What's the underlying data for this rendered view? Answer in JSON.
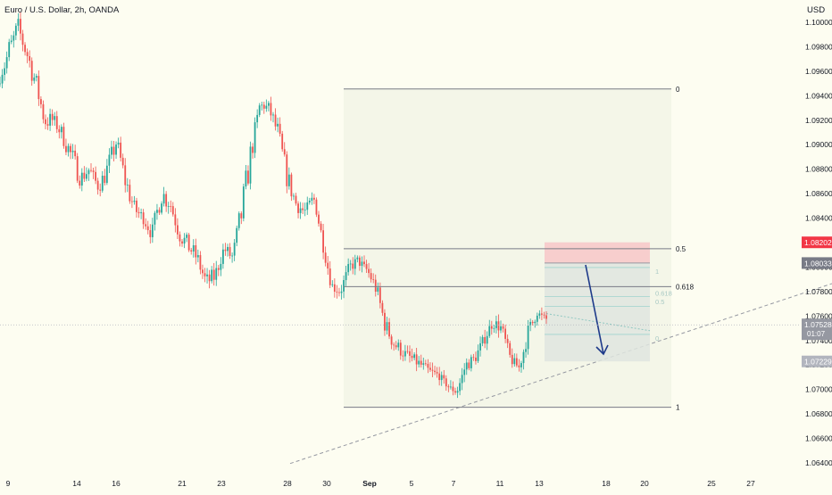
{
  "header": {
    "title": "Euro / U.S. Dollar, 2h, OANDA",
    "currency": "USD"
  },
  "colors": {
    "background": "#fdfdf1",
    "up_candle": "#26a69a",
    "down_candle": "#ef5350",
    "axis_text": "#131722",
    "fib_line": "#787b86",
    "stop_zone": "#f7caca",
    "target_zone": "#dfe5df",
    "arrow": "#1e3a8a",
    "stop_tag": "#f23645",
    "current_tag": "#9598a1",
    "entry_tag": "#787b86",
    "target_tag": "#b2b5be"
  },
  "chart_data": {
    "type": "candlestick",
    "symbol": "EURUSD",
    "timeframe": "2h",
    "ylim": [
      1.063,
      1.1015
    ],
    "xlim": [
      0,
      932
    ],
    "y_ticks": [
      "1.10000",
      "1.09800",
      "1.09600",
      "1.09400",
      "1.09200",
      "1.09000",
      "1.08800",
      "1.08600",
      "1.08400",
      "1.08200",
      "1.08000",
      "1.07800",
      "1.07600",
      "1.07400",
      "1.07200",
      "1.07000",
      "1.06800",
      "1.06600",
      "1.06400"
    ],
    "x_ticks": [
      {
        "label": "9",
        "bold": false
      },
      {
        "label": "14",
        "bold": false
      },
      {
        "label": "16",
        "bold": false
      },
      {
        "label": "21",
        "bold": false
      },
      {
        "label": "23",
        "bold": false
      },
      {
        "label": "28",
        "bold": false
      },
      {
        "label": "30",
        "bold": false
      },
      {
        "label": "Sep",
        "bold": true
      },
      {
        "label": "5",
        "bold": false
      },
      {
        "label": "7",
        "bold": false
      },
      {
        "label": "11",
        "bold": false
      },
      {
        "label": "13",
        "bold": false
      },
      {
        "label": "18",
        "bold": false
      },
      {
        "label": "20",
        "bold": false
      },
      {
        "label": "25",
        "bold": false
      },
      {
        "label": "27",
        "bold": false
      }
    ],
    "price_path": [
      [
        1.095,
        1.0975
      ],
      [
        1.0955,
        1.099
      ],
      [
        1.0985,
        1.1005
      ],
      [
        1.0965,
        1.0985
      ],
      [
        1.094,
        1.096
      ],
      [
        1.091,
        1.093
      ],
      [
        1.0915,
        1.0925
      ],
      [
        1.09,
        1.0915
      ],
      [
        1.088,
        1.09
      ],
      [
        1.0865,
        1.088
      ],
      [
        1.0875,
        1.0885
      ],
      [
        1.086,
        1.087
      ],
      [
        1.087,
        1.089
      ],
      [
        1.0895,
        1.091
      ],
      [
        1.086,
        1.088
      ],
      [
        1.084,
        1.0855
      ],
      [
        1.0835,
        1.0845
      ],
      [
        1.082,
        1.0835
      ],
      [
        1.085,
        1.087
      ],
      [
        1.0845,
        1.086
      ],
      [
        1.082,
        1.0835
      ],
      [
        1.081,
        1.0825
      ],
      [
        1.08,
        1.0815
      ],
      [
        1.078,
        1.0795
      ],
      [
        1.0785,
        1.08
      ],
      [
        1.081,
        1.082
      ],
      [
        1.08,
        1.0815
      ],
      [
        1.083,
        1.086
      ],
      [
        1.088,
        1.0905
      ],
      [
        1.093,
        1.0935
      ],
      [
        1.0925,
        1.0935
      ],
      [
        1.09,
        1.092
      ],
      [
        1.0865,
        1.0885
      ],
      [
        1.0845,
        1.086
      ],
      [
        1.084,
        1.085
      ],
      [
        1.0855,
        1.086
      ],
      [
        1.0815,
        1.083
      ],
      [
        1.078,
        1.079
      ],
      [
        1.0775,
        1.0785
      ],
      [
        1.0795,
        1.0805
      ],
      [
        1.08,
        1.081
      ],
      [
        1.0795,
        1.08
      ],
      [
        1.0775,
        1.079
      ],
      [
        1.0745,
        1.076
      ],
      [
        1.073,
        1.0745
      ],
      [
        1.0725,
        1.0735
      ],
      [
        1.072,
        1.073
      ],
      [
        1.0715,
        1.0725
      ],
      [
        1.0712,
        1.0718
      ],
      [
        1.0708,
        1.0715
      ],
      [
        1.07,
        1.0705
      ],
      [
        1.0695,
        1.07
      ],
      [
        1.0715,
        1.0725
      ],
      [
        1.072,
        1.073
      ],
      [
        1.0735,
        1.0745
      ],
      [
        1.075,
        1.076
      ],
      [
        1.0745,
        1.0755
      ],
      [
        1.072,
        1.073
      ],
      [
        1.0715,
        1.072
      ],
      [
        1.074,
        1.0755
      ],
      [
        1.076,
        1.0765
      ],
      [
        1.0755,
        1.076
      ]
    ],
    "path_x_range": [
      0,
      612
    ],
    "fibonacci": {
      "levels": [
        {
          "label": "0",
          "price": 1.09455
        },
        {
          "label": "0.5",
          "price": 1.0815
        },
        {
          "label": "0.618",
          "price": 1.0784
        },
        {
          "label": "1",
          "price": 1.06855
        }
      ],
      "x_start": 385,
      "x_end": 752
    },
    "position": {
      "type": "short",
      "stop": 1.08202,
      "entry": 1.08033,
      "target": 1.07229,
      "x_start": 610,
      "x_end": 728,
      "inner_labels": [
        "1",
        "0.618",
        "0.5",
        "0"
      ]
    },
    "trendline": {
      "from": [
        325,
        1.06395
      ],
      "to": [
        932,
        1.07865
      ]
    },
    "current_price": {
      "price": "1.07528",
      "countdown": "01:07",
      "value": 1.07528
    },
    "price_tags": [
      {
        "name": "stop-price-tag",
        "label": "1.08202",
        "value": 1.08202,
        "color": "#f23645"
      },
      {
        "name": "entry-price-tag",
        "label": "1.08033",
        "value": 1.08033,
        "color": "#787b86"
      },
      {
        "name": "target-price-tag",
        "label": "1.07229",
        "value": 1.07229,
        "color": "#b2b5be"
      }
    ]
  }
}
